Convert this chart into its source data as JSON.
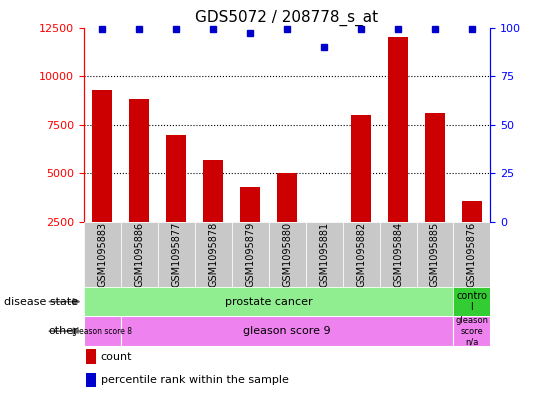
{
  "title": "GDS5072 / 208778_s_at",
  "samples": [
    "GSM1095883",
    "GSM1095886",
    "GSM1095877",
    "GSM1095878",
    "GSM1095879",
    "GSM1095880",
    "GSM1095881",
    "GSM1095882",
    "GSM1095884",
    "GSM1095885",
    "GSM1095876"
  ],
  "counts": [
    9300,
    8800,
    7000,
    5700,
    4300,
    5000,
    2300,
    8000,
    12000,
    8100,
    3600
  ],
  "percentiles": [
    99,
    99,
    99,
    99,
    97,
    99,
    90,
    99,
    99,
    99,
    99
  ],
  "ylim_left": [
    2500,
    12500
  ],
  "ylim_right": [
    0,
    100
  ],
  "yticks_left": [
    2500,
    5000,
    7500,
    10000,
    12500
  ],
  "yticks_right": [
    0,
    25,
    50,
    75,
    100
  ],
  "bar_color": "#cc0000",
  "dot_color": "#0000cc",
  "bar_bottom": 2500,
  "prostate_cancer_color": "#90EE90",
  "control_color": "#33cc33",
  "gleason_color": "#EE82EE",
  "tick_area_color": "#d0d0d0",
  "legend_count_label": "count",
  "legend_pct_label": "percentile rank within the sample",
  "background_color": "#ffffff",
  "title_fontsize": 11,
  "tick_fontsize": 7,
  "axis_fontsize": 8,
  "legend_fontsize": 8
}
